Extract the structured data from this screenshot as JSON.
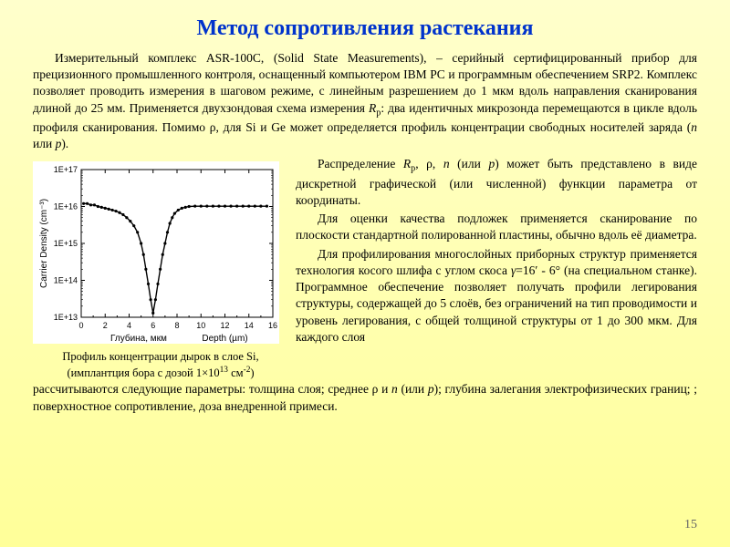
{
  "title": "Метод сопротивления растекания",
  "intro_html": "Измерительный комплекс ASR-100C, (Solid State Measurements), – серийный сертифицированный прибор для прецизионного промышленного контроля, оснащенный компьютером IBM PC и программным обеспечением SRP2. Комплекс позволяет проводить измерения в шаговом режиме, с линейным разрешением до 1 мкм вдоль направления сканирования длиной до 25 мм. Применяется двухзондовая схема измерения <span class=\"i\">R</span><span class=\"sub\">p</span>: два идентичных микрозонда перемещаются в цикле вдоль профиля сканирования. Помимо ρ, для Si и Ge может определяется профиль концентрации свободных носителей заряда (<span class=\"i\">n</span> или <span class=\"i\">p</span>).",
  "right_p1_html": "Распределение <span class=\"i\">R</span><span class=\"sub\">p</span>, ρ, <span class=\"i\">n</span> (или <span class=\"i\">p</span>) может быть представлено в виде дискретной графической (или численной) функции параметра от координаты.",
  "right_p2_html": "Для оценки качества подложек применяется сканирование по плоскости стандартной полированной пластины, обычно вдоль её диаметра.",
  "right_p3_html": "Для профилирования многослойных приборных структур применяется технология косого шлифа с углом скоса <span class=\"i\">γ</span>=16′ - 6° (на специальном станке). Программное обеспечение позволяет получать профили легирования структуры, содержащей до 5 слоёв, без ограничений на тип проводимости и уровень легирования, с общей толщиной структуры от 1 до 300 мкм. Для каждого слоя",
  "bottom_html": "рассчитываются следующие параметры: толщина слоя; среднее ρ и <span class=\"i\">n</span> (или <span class=\"i\">p</span>); глубина залегания электрофизических границ; ; поверхностное сопротивление, доза внедренной примеси.",
  "caption_line1": "Профиль концентрации дырок в слое Si,",
  "caption_line2_html": "(имплантция бора с дозой 1×10<span class=\"sup\">13</span> см<span class=\"sup\">-2</span>)",
  "page_number": "15",
  "chart": {
    "type": "line-scatter",
    "background_color": "#ffffff",
    "plot_border_color": "#000000",
    "axis_color": "#000000",
    "line_color": "#000000",
    "marker_color": "#000000",
    "marker_style": "circle",
    "marker_size": 3.2,
    "line_width": 1.4,
    "tick_fontsize": 9,
    "label_fontsize": 10,
    "x": {
      "label_ru": "Глубина, мкм",
      "label_en": "Depth (µm)",
      "lim": [
        0,
        16
      ],
      "ticks": [
        0,
        2,
        4,
        6,
        8,
        10,
        12,
        14,
        16
      ],
      "scale": "linear",
      "minor_ticks": true
    },
    "y": {
      "label": "Carrier Density (cm⁻³)",
      "lim": [
        10000000000000.0,
        1e+17
      ],
      "ticks": [
        10000000000000.0,
        100000000000000.0,
        1000000000000000.0,
        1e+16,
        1e+17
      ],
      "tick_labels": [
        "1E+13",
        "1E+14",
        "1E+15",
        "1E+16",
        "1E+17"
      ],
      "scale": "log",
      "minor_ticks": true
    },
    "data": {
      "x": [
        0.2,
        0.5,
        0.8,
        1.1,
        1.4,
        1.7,
        2.0,
        2.3,
        2.6,
        2.9,
        3.2,
        3.5,
        3.8,
        4.1,
        4.4,
        4.7,
        5.0,
        5.2,
        5.4,
        5.6,
        5.8,
        6.0,
        6.2,
        6.4,
        6.6,
        6.8,
        7.0,
        7.2,
        7.4,
        7.6,
        7.8,
        8.1,
        8.4,
        8.7,
        9.0,
        9.5,
        10.0,
        10.5,
        11.0,
        11.5,
        12.0,
        12.5,
        13.0,
        13.5,
        14.0,
        14.5,
        15.0,
        15.5
      ],
      "y": [
        1.2e+16,
        1.2e+16,
        1.1e+16,
        1.1e+16,
        1e+16,
        9500000000000000.0,
        9000000000000000.0,
        8500000000000000.0,
        8000000000000000.0,
        7500000000000000.0,
        6800000000000000.0,
        6000000000000000.0,
        5000000000000000.0,
        4000000000000000.0,
        3000000000000000.0,
        2000000000000000.0,
        1000000000000000.0,
        500000000000000.0,
        200000000000000.0,
        80000000000000.0,
        30000000000000.0,
        13000000000000.0,
        30000000000000.0,
        80000000000000.0,
        200000000000000.0,
        500000000000000.0,
        1000000000000000.0,
        2000000000000000.0,
        3500000000000000.0,
        5000000000000000.0,
        6500000000000000.0,
        8000000000000000.0,
        9000000000000000.0,
        9500000000000000.0,
        1e+16,
        1.02e+16,
        1.02e+16,
        1.02e+16,
        1.02e+16,
        1.02e+16,
        1.02e+16,
        1.02e+16,
        1.02e+16,
        1.02e+16,
        1.02e+16,
        1.02e+16,
        1.02e+16,
        1.02e+16
      ]
    }
  }
}
